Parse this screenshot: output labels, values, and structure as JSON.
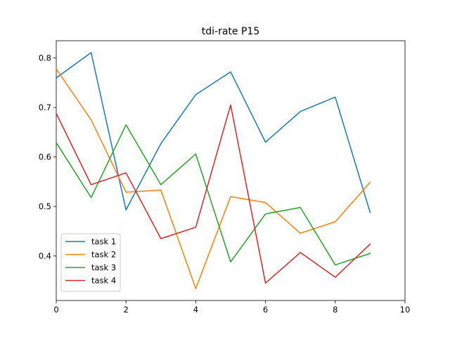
{
  "chart_data": {
    "type": "line",
    "title": "tdi-rate P15",
    "xlabel": "",
    "ylabel": "",
    "xlim": [
      0,
      10
    ],
    "ylim": [
      0.31,
      0.835
    ],
    "xticks": [
      0,
      2,
      4,
      6,
      8,
      10
    ],
    "yticks": [
      0.4,
      0.5,
      0.6,
      0.7,
      0.8
    ],
    "xtick_labels": [
      "0",
      "2",
      "4",
      "6",
      "8",
      "10"
    ],
    "ytick_labels": [
      "0.4",
      "0.5",
      "0.6",
      "0.7",
      "0.8"
    ],
    "grid": false,
    "legend_position": "lower-left",
    "x": [
      0,
      1,
      2,
      3,
      4,
      5,
      6,
      7,
      8,
      9
    ],
    "series": [
      {
        "name": "task 1",
        "color": "#1f77b4",
        "values": [
          0.76,
          0.811,
          0.493,
          0.627,
          0.726,
          0.772,
          0.63,
          0.692,
          0.721,
          0.488
        ]
      },
      {
        "name": "task 2",
        "color": "#ff7f0e",
        "values": [
          0.778,
          0.675,
          0.529,
          0.533,
          0.334,
          0.52,
          0.508,
          0.446,
          0.469,
          0.549
        ]
      },
      {
        "name": "task 3",
        "color": "#2ca02c",
        "values": [
          0.629,
          0.518,
          0.665,
          0.544,
          0.606,
          0.388,
          0.485,
          0.498,
          0.382,
          0.405
        ]
      },
      {
        "name": "task 4",
        "color": "#d62728",
        "values": [
          0.688,
          0.544,
          0.568,
          0.435,
          0.458,
          0.705,
          0.345,
          0.407,
          0.357,
          0.424
        ]
      }
    ]
  }
}
